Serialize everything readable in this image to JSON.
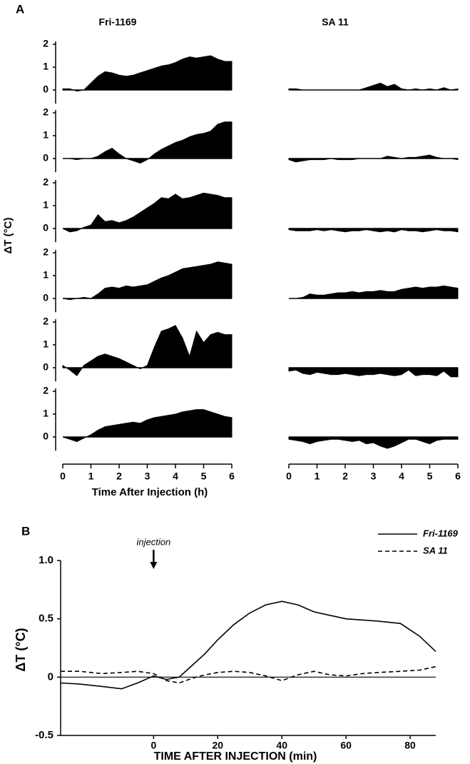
{
  "chart_data": [
    {
      "type": "area-grid",
      "panel": "A",
      "ylabel": "ΔT (°C)",
      "xlabel": "Time After Injection (h)",
      "color": "#000000",
      "x": [
        0,
        0.25,
        0.5,
        0.75,
        1,
        1.25,
        1.5,
        1.75,
        2,
        2.25,
        2.5,
        2.75,
        3,
        3.25,
        3.5,
        3.75,
        4,
        4.25,
        4.5,
        4.75,
        5,
        5.25,
        5.5,
        5.75,
        6
      ],
      "xlim": [
        0,
        6
      ],
      "xticks": [
        0,
        1,
        2,
        3,
        4,
        5,
        6
      ],
      "ylim": [
        -0.6,
        2
      ],
      "yticks": [
        0,
        1,
        2
      ],
      "columns": [
        {
          "title": "Fri-1169",
          "rows": [
            [
              0.05,
              0.05,
              -0.05,
              0,
              0.3,
              0.6,
              0.8,
              0.75,
              0.65,
              0.6,
              0.65,
              0.75,
              0.85,
              0.95,
              1.05,
              1.1,
              1.2,
              1.35,
              1.45,
              1.4,
              1.45,
              1.5,
              1.35,
              1.25,
              1.25
            ],
            [
              0,
              0,
              -0.05,
              0,
              0,
              0.1,
              0.3,
              0.45,
              0.2,
              0,
              -0.1,
              -0.2,
              -0.05,
              0.2,
              0.4,
              0.55,
              0.7,
              0.8,
              0.95,
              1.05,
              1.1,
              1.2,
              1.5,
              1.6,
              1.6
            ],
            [
              0,
              -0.15,
              -0.1,
              0.05,
              0.15,
              0.6,
              0.3,
              0.35,
              0.25,
              0.35,
              0.5,
              0.7,
              0.9,
              1.1,
              1.35,
              1.3,
              1.5,
              1.3,
              1.35,
              1.45,
              1.55,
              1.5,
              1.45,
              1.35,
              1.35
            ],
            [
              0,
              -0.05,
              0,
              0.05,
              0,
              0.2,
              0.45,
              0.5,
              0.45,
              0.55,
              0.5,
              0.55,
              0.6,
              0.75,
              0.9,
              1.0,
              1.15,
              1.3,
              1.35,
              1.4,
              1.45,
              1.5,
              1.6,
              1.55,
              1.5
            ],
            [
              0.1,
              -0.1,
              -0.35,
              0.1,
              0.3,
              0.5,
              0.6,
              0.5,
              0.4,
              0.25,
              0.1,
              -0.05,
              0.1,
              0.9,
              1.6,
              1.7,
              1.85,
              1.3,
              0.5,
              1.6,
              1.1,
              1.45,
              1.55,
              1.45,
              1.45
            ],
            [
              0,
              -0.1,
              -0.2,
              -0.05,
              0.1,
              0.3,
              0.45,
              0.5,
              0.55,
              0.6,
              0.65,
              0.6,
              0.75,
              0.85,
              0.9,
              0.95,
              1.0,
              1.1,
              1.15,
              1.2,
              1.2,
              1.1,
              1.0,
              0.9,
              0.85
            ]
          ]
        },
        {
          "title": "SA 11",
          "rows": [
            [
              0.05,
              0.05,
              0,
              0,
              0,
              0,
              0,
              0,
              0,
              0,
              0,
              0.1,
              0.2,
              0.3,
              0.15,
              0.25,
              0.05,
              0,
              0.05,
              0,
              0.05,
              0,
              0.1,
              0,
              0.05
            ],
            [
              -0.05,
              -0.15,
              -0.1,
              -0.05,
              -0.05,
              -0.05,
              0,
              -0.05,
              -0.05,
              -0.05,
              0,
              0,
              0,
              0,
              0.1,
              0.05,
              0,
              0.05,
              0.05,
              0.1,
              0.15,
              0.05,
              0,
              0,
              -0.05
            ],
            [
              -0.05,
              -0.1,
              -0.1,
              -0.1,
              -0.05,
              -0.1,
              -0.05,
              -0.1,
              -0.15,
              -0.1,
              -0.1,
              -0.05,
              -0.1,
              -0.15,
              -0.1,
              -0.15,
              -0.05,
              -0.1,
              -0.1,
              -0.15,
              -0.1,
              -0.05,
              -0.1,
              -0.1,
              -0.15
            ],
            [
              0,
              0,
              0.05,
              0.2,
              0.15,
              0.15,
              0.2,
              0.25,
              0.25,
              0.3,
              0.25,
              0.3,
              0.3,
              0.35,
              0.3,
              0.3,
              0.4,
              0.45,
              0.5,
              0.45,
              0.5,
              0.5,
              0.55,
              0.5,
              0.45
            ],
            [
              -0.15,
              -0.1,
              -0.25,
              -0.3,
              -0.2,
              -0.25,
              -0.3,
              -0.3,
              -0.25,
              -0.3,
              -0.35,
              -0.3,
              -0.3,
              -0.25,
              -0.3,
              -0.35,
              -0.3,
              -0.1,
              -0.35,
              -0.3,
              -0.3,
              -0.35,
              -0.15,
              -0.4,
              -0.4
            ],
            [
              -0.1,
              -0.15,
              -0.2,
              -0.3,
              -0.2,
              -0.15,
              -0.1,
              -0.1,
              -0.15,
              -0.2,
              -0.15,
              -0.3,
              -0.25,
              -0.4,
              -0.5,
              -0.4,
              -0.25,
              -0.1,
              -0.1,
              -0.2,
              -0.3,
              -0.15,
              -0.1,
              -0.1,
              -0.1
            ]
          ]
        }
      ]
    },
    {
      "type": "line",
      "panel": "B",
      "ylabel": "ΔT (°C)",
      "xlabel": "TIME AFTER INJECTION (min)",
      "annotation": {
        "text": "injection",
        "x": 0
      },
      "legend": "top-right",
      "x": [
        -29,
        -23,
        -16,
        -10,
        -5,
        0,
        4,
        8,
        12,
        16,
        20,
        25,
        30,
        35,
        40,
        45,
        50,
        55,
        60,
        65,
        70,
        77,
        83,
        88
      ],
      "xlim": [
        -29,
        88
      ],
      "xticks": [
        0,
        20,
        40,
        60,
        80
      ],
      "ylim": [
        -0.5,
        1.0
      ],
      "yticks": [
        -0.5,
        0,
        0.5,
        {
          "value": 1.0,
          "label": "1.0"
        }
      ],
      "series": [
        {
          "name": "Fri-1169",
          "color": "#000000",
          "style": "solid",
          "values": [
            -0.05,
            -0.06,
            -0.08,
            -0.1,
            -0.05,
            0.01,
            -0.02,
            0,
            0.1,
            0.2,
            0.32,
            0.45,
            0.55,
            0.62,
            0.65,
            0.62,
            0.56,
            0.53,
            0.5,
            0.49,
            0.48,
            0.46,
            0.35,
            0.22
          ]
        },
        {
          "name": "SA 11",
          "color": "#000000",
          "style": "dashed",
          "values": [
            0.05,
            0.05,
            0.03,
            0.04,
            0.05,
            0.03,
            -0.03,
            -0.05,
            -0.01,
            0.02,
            0.04,
            0.05,
            0.04,
            0.01,
            -0.03,
            0.02,
            0.05,
            0.02,
            0.01,
            0.03,
            0.04,
            0.05,
            0.06,
            0.09
          ]
        }
      ]
    }
  ]
}
